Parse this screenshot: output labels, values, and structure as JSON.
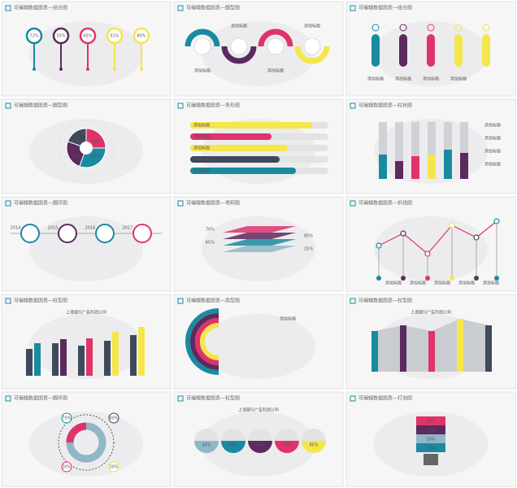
{
  "slides": [
    {
      "title": "可编辑数据图表—组合图",
      "labels": [
        "72%",
        "55%",
        "65%",
        "51%",
        "80%"
      ]
    },
    {
      "title": "可编辑数据图表—圆型图",
      "labels": [
        "添加标题",
        "添加标题",
        "添加标题",
        "添加标题"
      ]
    },
    {
      "title": "可编辑数据图表—组合图",
      "labels": [
        "添加标题",
        "添加标题",
        "添加标题",
        "添加标题"
      ]
    },
    {
      "title": "可编辑数据图表—圆型图",
      "labels": [
        "30%",
        "40%",
        "45%",
        "25%"
      ]
    },
    {
      "title": "可编辑数据图表—条形图",
      "labels": [
        "添加标题",
        "添加标题",
        "添加标题",
        "添加标题",
        "添加标题"
      ]
    },
    {
      "title": "可编辑数据图表—柱状图",
      "labels": [
        "添加标题",
        "添加标题",
        "添加标题",
        "添加标题"
      ]
    },
    {
      "title": "可编辑数据图表—圆环图",
      "labels": [
        "2014",
        "2015",
        "2016",
        "2017"
      ]
    },
    {
      "title": "可编辑数据图表—堆积图",
      "labels": [
        "70%",
        "85%",
        "65%",
        "25%"
      ]
    },
    {
      "title": "可编辑数据图表—折线图",
      "labels": [
        "添加标题",
        "添加标题",
        "添加标题",
        "添加标题",
        "添加标题"
      ]
    },
    {
      "title": "可编辑数据图表—柱型图",
      "subtitle": "上海银行广告利润公司",
      "labels": []
    },
    {
      "title": "可编辑数据图表—扇型图",
      "labels": [
        "添加标题"
      ]
    },
    {
      "title": "可编辑数据图表—柱型图",
      "subtitle": "上海银行广告利润公司",
      "labels": []
    },
    {
      "title": "可编辑数据图表—圆环图",
      "labels": [
        "70%",
        "40%",
        "30%",
        "20%"
      ]
    },
    {
      "title": "可编辑数据图表—柱型图",
      "subtitle": "上海银行广告利润公司",
      "labels": [
        "54%",
        "67%",
        "76%",
        "71%",
        "85%"
      ]
    },
    {
      "title": "可编辑数据图表—打泡图",
      "labels": [
        "30%",
        "20%",
        "20%",
        "30%"
      ]
    }
  ]
}
